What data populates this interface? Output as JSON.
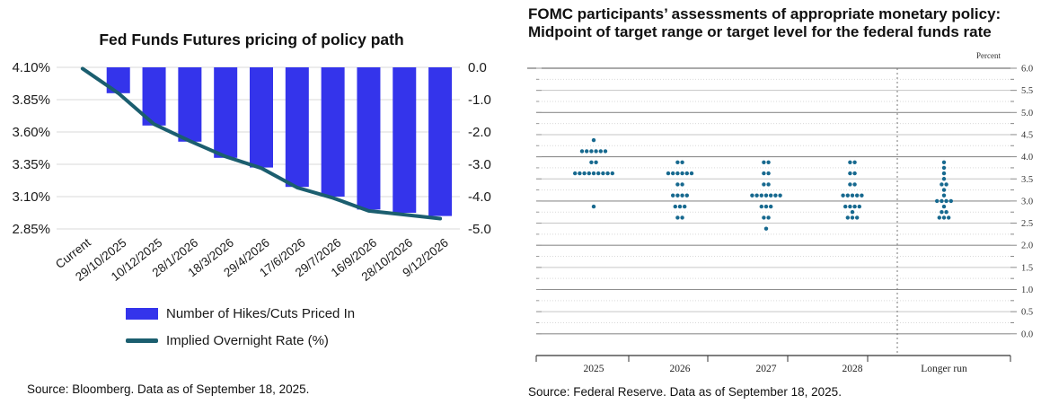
{
  "chart_data": [
    {
      "id": "fed-funds-futures",
      "type": "bar",
      "title": "Fed Funds Futures pricing of policy path",
      "categories": [
        "Current",
        "29/10/2025",
        "10/12/2025",
        "28/1/2026",
        "18/3/2026",
        "29/4/2026",
        "17/6/2026",
        "29/7/2026",
        "16/9/2026",
        "28/10/2026",
        "9/12/2026"
      ],
      "series": [
        {
          "name": "Number of Hikes/Cuts Priced In",
          "type": "bar",
          "axis": "right",
          "color": "#3434EB",
          "values": [
            null,
            -0.8,
            -1.8,
            -2.3,
            -2.8,
            -3.1,
            -3.7,
            -4.0,
            -4.4,
            -4.5,
            -4.6
          ]
        },
        {
          "name": "Implied Overnight Rate (%)",
          "type": "line",
          "axis": "left",
          "color": "#1B5E6F",
          "values": [
            4.09,
            3.9,
            3.66,
            3.53,
            3.41,
            3.32,
            3.17,
            3.09,
            2.99,
            2.96,
            2.93
          ]
        }
      ],
      "left_axis": {
        "tick_labels": [
          "4.10%",
          "3.85%",
          "3.60%",
          "3.35%",
          "3.10%",
          "2.85%"
        ],
        "max": 4.1,
        "min": 2.85,
        "step": 0.25
      },
      "right_axis": {
        "tick_labels": [
          "0.0",
          "-1.0",
          "-2.0",
          "-3.0",
          "-4.0",
          "-5.0"
        ],
        "max": 0.0,
        "min": -5.0,
        "step": 1.0
      },
      "grid": true,
      "legend_position": "bottom",
      "source": "Source: Bloomberg. Data as of September 18, 2025."
    },
    {
      "id": "fomc-dot-plot",
      "type": "scatter",
      "title": "FOMC participants’ assessments of appropriate monetary policy: Midpoint of target range or target level for the federal funds rate",
      "axis_unit_label": "Percent",
      "ylim": [
        0.0,
        6.0
      ],
      "y_major_tick_values": [
        6.0,
        5.5,
        5.0,
        4.5,
        4.0,
        3.5,
        3.0,
        2.5,
        2.0,
        1.5,
        1.0,
        0.5,
        0.0
      ],
      "y_minor_step": 0.25,
      "dot_color": "#17698F",
      "categories": [
        "2025",
        "2026",
        "2027",
        "2028",
        "Longer run"
      ],
      "columns": [
        {
          "label": "2025",
          "dots": [
            {
              "y": 4.375,
              "count": 1
            },
            {
              "y": 4.125,
              "count": 6
            },
            {
              "y": 3.875,
              "count": 2
            },
            {
              "y": 3.625,
              "count": 9
            },
            {
              "y": 2.875,
              "count": 1
            }
          ]
        },
        {
          "label": "2026",
          "dots": [
            {
              "y": 3.875,
              "count": 2
            },
            {
              "y": 3.625,
              "count": 6
            },
            {
              "y": 3.375,
              "count": 2
            },
            {
              "y": 3.125,
              "count": 4
            },
            {
              "y": 2.875,
              "count": 3
            },
            {
              "y": 2.625,
              "count": 2
            }
          ]
        },
        {
          "label": "2027",
          "dots": [
            {
              "y": 3.875,
              "count": 2
            },
            {
              "y": 3.625,
              "count": 2
            },
            {
              "y": 3.375,
              "count": 2
            },
            {
              "y": 3.125,
              "count": 7
            },
            {
              "y": 2.875,
              "count": 3
            },
            {
              "y": 2.625,
              "count": 2
            },
            {
              "y": 2.375,
              "count": 1
            }
          ]
        },
        {
          "label": "2028",
          "dots": [
            {
              "y": 3.875,
              "count": 2
            },
            {
              "y": 3.625,
              "count": 2
            },
            {
              "y": 3.375,
              "count": 2
            },
            {
              "y": 3.125,
              "count": 5
            },
            {
              "y": 2.875,
              "count": 4
            },
            {
              "y": 2.75,
              "count": 1
            },
            {
              "y": 2.625,
              "count": 3
            }
          ]
        },
        {
          "label": "Longer run",
          "dots": [
            {
              "y": 3.875,
              "count": 1
            },
            {
              "y": 3.75,
              "count": 1
            },
            {
              "y": 3.625,
              "count": 1
            },
            {
              "y": 3.5,
              "count": 1
            },
            {
              "y": 3.375,
              "count": 2
            },
            {
              "y": 3.25,
              "count": 1
            },
            {
              "y": 3.125,
              "count": 1
            },
            {
              "y": 3.0,
              "count": 4
            },
            {
              "y": 2.875,
              "count": 1
            },
            {
              "y": 2.75,
              "count": 2
            },
            {
              "y": 2.625,
              "count": 3
            }
          ]
        }
      ],
      "source": "Source: Federal Reserve. Data as of September 18, 2025."
    }
  ]
}
